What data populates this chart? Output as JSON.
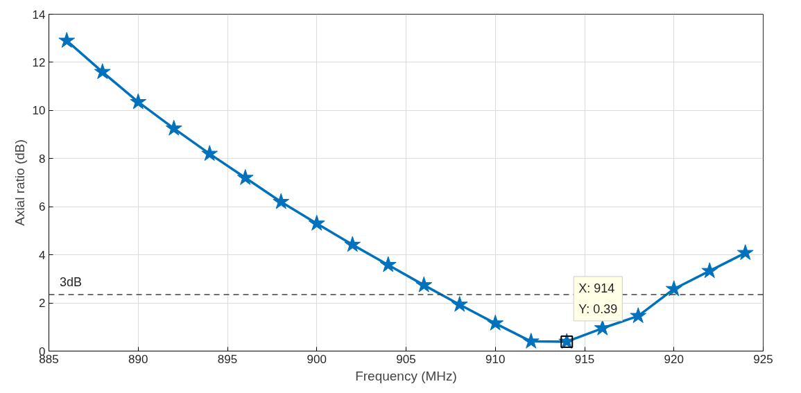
{
  "chart_data": {
    "type": "line",
    "xlabel": "Frequency (MHz)",
    "ylabel": "Axial ratio (dB)",
    "x": [
      886,
      888,
      890,
      892,
      894,
      896,
      898,
      900,
      902,
      904,
      906,
      908,
      910,
      912,
      914,
      916,
      918,
      920,
      922,
      924
    ],
    "series": [
      {
        "color": "#0072bd",
        "values": [
          12.9,
          11.6,
          10.35,
          9.25,
          8.2,
          7.2,
          6.2,
          5.3,
          4.42,
          3.58,
          2.74,
          1.93,
          1.15,
          0.4,
          0.39,
          0.95,
          1.46,
          2.58,
          3.33,
          4.08
        ]
      }
    ],
    "marker": "star",
    "line_style": "solid",
    "grid": true,
    "xlim": [
      885,
      925
    ],
    "xticks": [
      885,
      890,
      895,
      900,
      905,
      910,
      915,
      920,
      925
    ],
    "ylim": [
      0,
      14
    ],
    "yticks": [
      0,
      2,
      4,
      6,
      8,
      10,
      12,
      14
    ],
    "ref_lines": [
      {
        "axis": "y",
        "value": 2.35,
        "label": "3dB",
        "color": "#404040",
        "line_style": "dashed"
      }
    ],
    "annotations": [
      {
        "text": "X: 914\nY: 0.39",
        "x": 914,
        "y": 0.39
      }
    ]
  }
}
